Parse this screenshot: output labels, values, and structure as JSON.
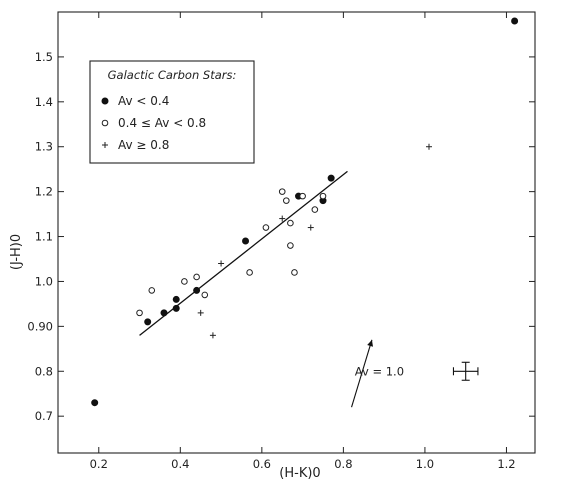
{
  "chart_data": {
    "type": "scatter",
    "xlabel": "(H-K)0",
    "ylabel": "(J-H)0",
    "xlim": [
      0.1,
      1.27
    ],
    "ylim": [
      0.618,
      1.6
    ],
    "grid": false,
    "x_ticks": [
      {
        "value": 0.2,
        "label": "0.2"
      },
      {
        "value": 0.4,
        "label": "0.4"
      },
      {
        "value": 0.6,
        "label": "0.6"
      },
      {
        "value": 0.8,
        "label": "0.8"
      },
      {
        "value": 1.0,
        "label": "1.0"
      },
      {
        "value": 1.2,
        "label": "1.2"
      }
    ],
    "y_ticks": [
      {
        "value": 0.7,
        "label": "0.7"
      },
      {
        "value": 0.8,
        "label": "0.8"
      },
      {
        "value": 0.9,
        "label": "0.90"
      },
      {
        "value": 1.0,
        "label": "1.0"
      },
      {
        "value": 1.1,
        "label": "1.1"
      },
      {
        "value": 1.2,
        "label": "1.2"
      },
      {
        "value": 1.3,
        "label": "1.3"
      },
      {
        "value": 1.4,
        "label": "1.4"
      },
      {
        "value": 1.5,
        "label": "1.5"
      }
    ],
    "legend": {
      "title": "Galactic Carbon Stars:",
      "position": "top-left",
      "entries": [
        {
          "marker": "filled-circle",
          "label": "Av < 0.4"
        },
        {
          "marker": "open-circle",
          "label": "0.4 ≤ Av < 0.8"
        },
        {
          "marker": "plus",
          "label": "Av ≥ 0.8"
        }
      ]
    },
    "series": [
      {
        "marker": "filled-circle",
        "points": [
          {
            "x": 0.19,
            "y": 0.73
          },
          {
            "x": 0.32,
            "y": 0.91
          },
          {
            "x": 0.36,
            "y": 0.93
          },
          {
            "x": 0.39,
            "y": 0.94
          },
          {
            "x": 0.39,
            "y": 0.96
          },
          {
            "x": 0.44,
            "y": 0.98
          },
          {
            "x": 0.56,
            "y": 1.09
          },
          {
            "x": 0.69,
            "y": 1.19
          },
          {
            "x": 0.75,
            "y": 1.18
          },
          {
            "x": 0.77,
            "y": 1.23
          },
          {
            "x": 1.22,
            "y": 1.58
          }
        ]
      },
      {
        "marker": "open-circle",
        "points": [
          {
            "x": 0.3,
            "y": 0.93
          },
          {
            "x": 0.33,
            "y": 0.98
          },
          {
            "x": 0.41,
            "y": 1.0
          },
          {
            "x": 0.44,
            "y": 1.01
          },
          {
            "x": 0.46,
            "y": 0.97
          },
          {
            "x": 0.57,
            "y": 1.02
          },
          {
            "x": 0.61,
            "y": 1.12
          },
          {
            "x": 0.65,
            "y": 1.2
          },
          {
            "x": 0.66,
            "y": 1.18
          },
          {
            "x": 0.67,
            "y": 1.13
          },
          {
            "x": 0.67,
            "y": 1.08
          },
          {
            "x": 0.68,
            "y": 1.02
          },
          {
            "x": 0.7,
            "y": 1.19
          },
          {
            "x": 0.73,
            "y": 1.16
          },
          {
            "x": 0.75,
            "y": 1.19
          }
        ]
      },
      {
        "marker": "plus",
        "points": [
          {
            "x": 0.45,
            "y": 0.93
          },
          {
            "x": 0.48,
            "y": 0.88
          },
          {
            "x": 0.5,
            "y": 1.04
          },
          {
            "x": 0.65,
            "y": 1.14
          },
          {
            "x": 0.72,
            "y": 1.12
          },
          {
            "x": 1.01,
            "y": 1.3
          }
        ]
      }
    ],
    "fit_line": {
      "x": [
        0.3,
        0.81
      ],
      "y": [
        0.88,
        1.245
      ]
    },
    "reddening_vector": {
      "label": "Av = 1.0",
      "from": {
        "x": 0.82,
        "y": 0.72
      },
      "to": {
        "x": 0.87,
        "y": 0.87
      }
    },
    "error_bar": {
      "x": 1.1,
      "y": 0.8,
      "x_error": 0.03,
      "y_error": 0.02
    }
  }
}
